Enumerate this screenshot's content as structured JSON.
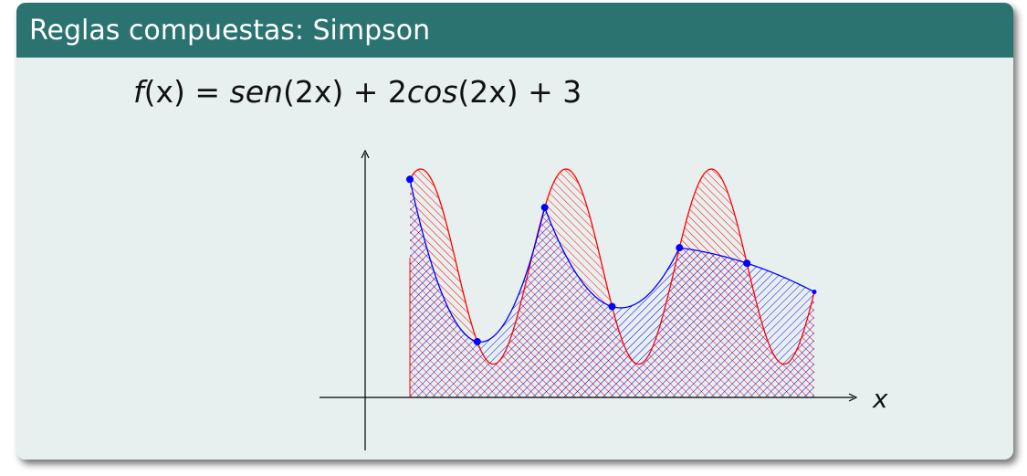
{
  "block": {
    "title": "Reglas compuestas: Simpson"
  },
  "formula": {
    "lhs_f": "f",
    "lhs_arg": "(x) = ",
    "t1": "sen",
    "t2": "(2x) + 2",
    "t3": "cos",
    "t4": "(2x) + 3"
  },
  "chart_data": {
    "type": "area",
    "function": "sin(2x) + 2cos(2x) + 3",
    "xlabel": "x",
    "ylabel": "",
    "nodes_count": 7,
    "colors": {
      "function_curve": "#ff0000",
      "simpson_approx": "#0000ff",
      "header": "#2a7371",
      "background": "#e8f0ef"
    },
    "grid": false
  }
}
